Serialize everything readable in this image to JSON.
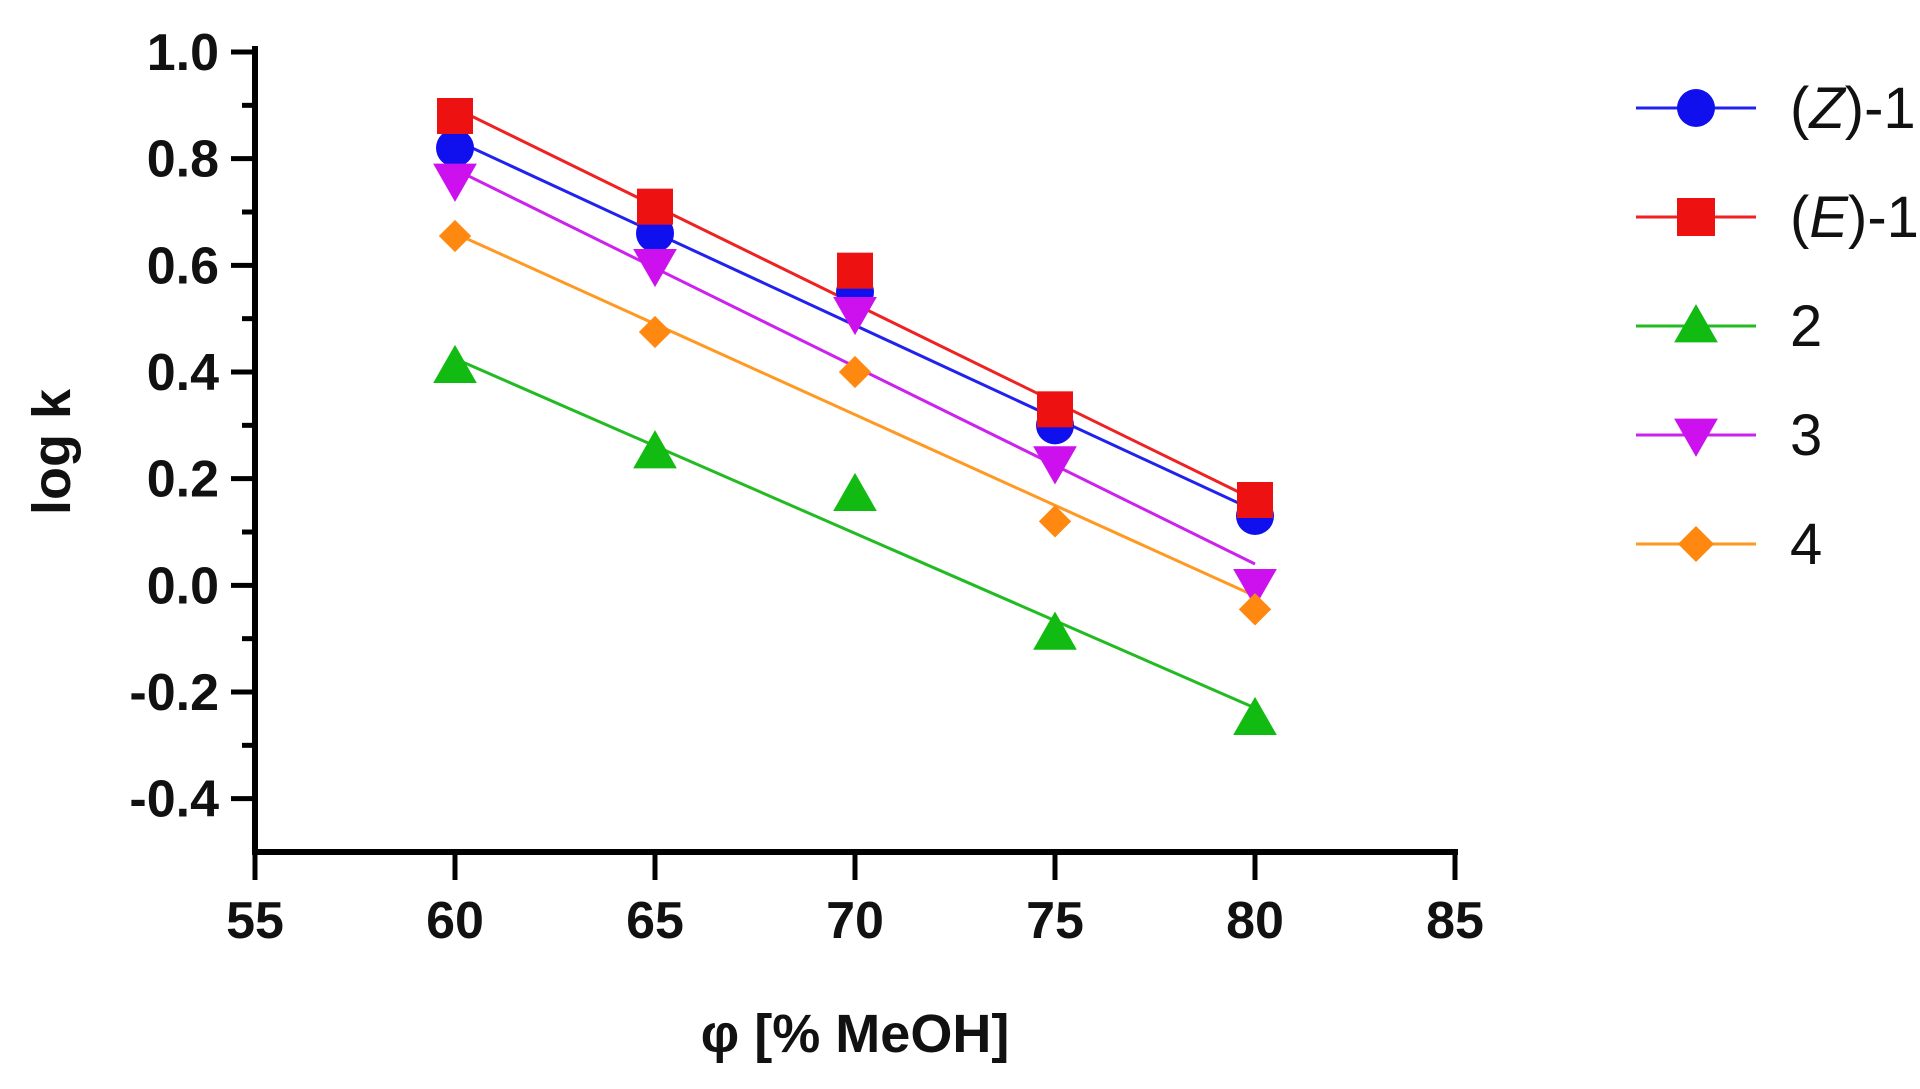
{
  "chart_data": {
    "type": "scatter",
    "xlabel": "φ [% MeOH]",
    "ylabel": "log k",
    "xlim": [
      55,
      85
    ],
    "ylim": [
      -0.5,
      1.0
    ],
    "xticks": [
      55,
      60,
      65,
      70,
      75,
      80,
      85
    ],
    "yticks": [
      -0.4,
      -0.2,
      0.0,
      0.2,
      0.4,
      0.6,
      0.8,
      1.0
    ],
    "ytick_labels": [
      "-0.4",
      "-0.2",
      "0.0",
      "0.2",
      "0.4",
      "0.6",
      "0.8",
      "1.0"
    ],
    "x": [
      60,
      65,
      70,
      75,
      80
    ],
    "series": [
      {
        "name": "(Z)-1",
        "name_prefix": "(",
        "name_italic": "Z",
        "name_suffix": ")-1",
        "marker": "circle",
        "color": "#1010ee",
        "line_color": "#2222ee",
        "values": [
          0.82,
          0.66,
          0.55,
          0.3,
          0.13
        ],
        "fit": [
          0.835,
          0.14
        ]
      },
      {
        "name": "(E)-1",
        "name_prefix": "(",
        "name_italic": "E",
        "name_suffix": ")-1",
        "marker": "square",
        "color": "#ee1111",
        "line_color": "#ee2222",
        "values": [
          0.88,
          0.71,
          0.59,
          0.33,
          0.16
        ],
        "fit": [
          0.895,
          0.16
        ]
      },
      {
        "name": "2",
        "name_prefix": "2",
        "name_italic": "",
        "name_suffix": "",
        "marker": "triangle-up",
        "color": "#11bb11",
        "line_color": "#22bb22",
        "values": [
          0.41,
          0.25,
          0.17,
          -0.09,
          -0.25
        ],
        "fit": [
          0.425,
          -0.23
        ]
      },
      {
        "name": "3",
        "name_prefix": "3",
        "name_italic": "",
        "name_suffix": "",
        "marker": "triangle-down",
        "color": "#cc11ee",
        "line_color": "#cc22ee",
        "values": [
          0.76,
          0.6,
          0.51,
          0.23,
          0.0
        ],
        "fit": [
          0.78,
          0.04
        ]
      },
      {
        "name": "4",
        "name_prefix": "4",
        "name_italic": "",
        "name_suffix": "",
        "marker": "diamond",
        "color": "#ff8811",
        "line_color": "#ff9922",
        "values": [
          0.655,
          0.475,
          0.4,
          0.12,
          -0.045
        ],
        "fit": [
          0.66,
          -0.02
        ]
      }
    ]
  }
}
